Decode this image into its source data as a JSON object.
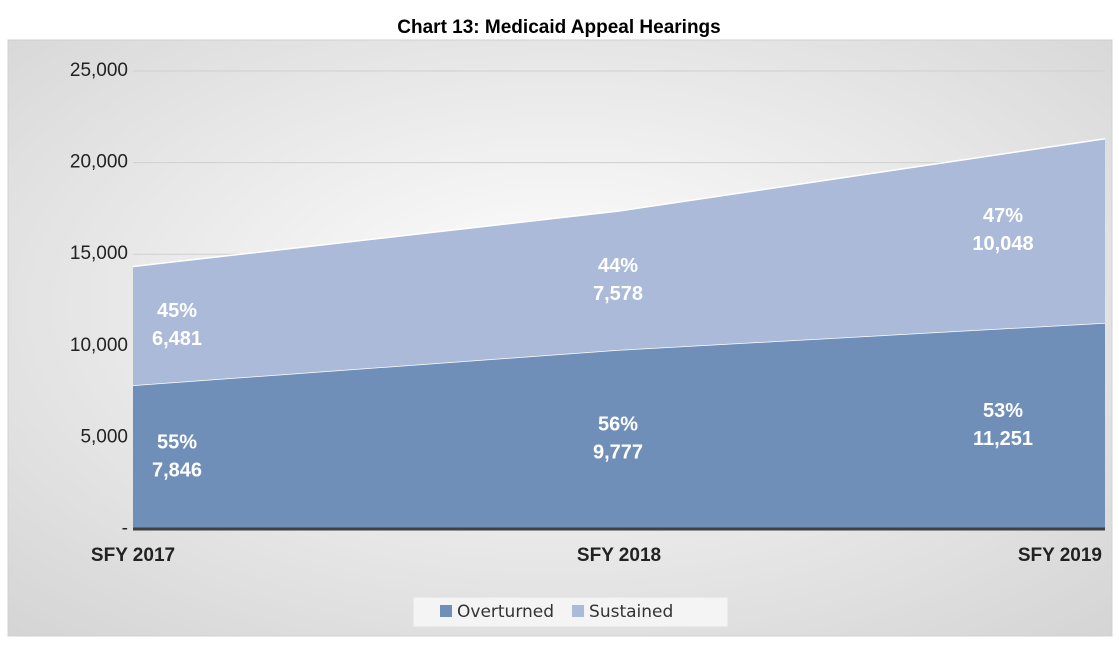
{
  "chart_data": {
    "type": "stacked_area",
    "title": "Chart 13: Medicaid Appeal Hearings",
    "categories": [
      "SFY 2017",
      "SFY 2018",
      "SFY 2019"
    ],
    "series": [
      {
        "name": "Overturned",
        "color": "#6f8fb9",
        "values": [
          7846,
          9777,
          11251
        ],
        "value_labels": [
          "7,846",
          "9,777",
          "11,251"
        ],
        "percent_labels": [
          "55%",
          "56%",
          "53%"
        ]
      },
      {
        "name": "Sustained",
        "color": "#abbad8",
        "values": [
          6481,
          7578,
          10048
        ],
        "value_labels": [
          "6,481",
          "7,578",
          "10,048"
        ],
        "percent_labels": [
          "45%",
          "44%",
          "47%"
        ]
      }
    ],
    "ylim": [
      0,
      25000
    ],
    "yticks": [
      {
        "value": 0,
        "label": "-"
      },
      {
        "value": 5000,
        "label": "5,000"
      },
      {
        "value": 10000,
        "label": "10,000"
      },
      {
        "value": 15000,
        "label": "15,000"
      },
      {
        "value": 20000,
        "label": "20,000"
      },
      {
        "value": 25000,
        "label": "25,000"
      }
    ],
    "grid": true,
    "legend": "bottom"
  }
}
